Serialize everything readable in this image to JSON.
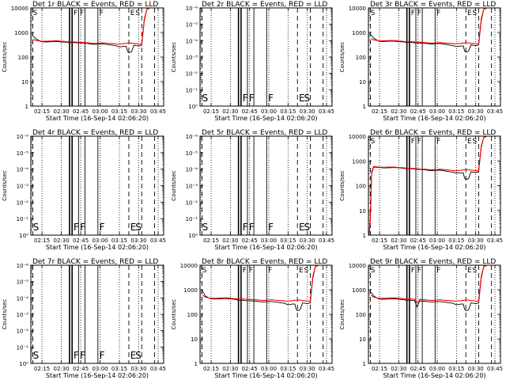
{
  "page": {
    "background": "#ffffff"
  },
  "colors": {
    "events": "#000000",
    "lld": "#ff0000"
  },
  "common": {
    "xlabel": "Start Time (16-Sep-14 02:06:20)",
    "ylabel": "Counts/sec",
    "x_ticks": [
      "02:15",
      "02:30",
      "02:45",
      "03:00",
      "03:15",
      "03:30",
      "03:45"
    ],
    "x_tick_values_min": [
      8.67,
      23.67,
      38.67,
      53.67,
      68.67,
      83.67,
      98.67
    ],
    "xlim_min": [
      0,
      103
    ],
    "log_ticks_A": [
      "1",
      "10",
      "100",
      "1000",
      "10000"
    ],
    "log_ticks_B": [
      "10⁰",
      "10⁻¹",
      "10⁻²",
      "10⁻³",
      "10⁻⁴",
      "10⁻⁵",
      "10⁻⁶"
    ],
    "dotted_lines_min": [
      8.67,
      23.67,
      38.67,
      53.67,
      68.67,
      83.67,
      98.67
    ],
    "solid_lines_min": [
      30,
      32,
      37,
      42,
      52
    ],
    "dashed_lines_min": [
      1.5,
      76,
      86,
      96
    ],
    "letters": [
      {
        "text": "F",
        "x": 32.5
      },
      {
        "text": "F",
        "x": 37.5
      },
      {
        "text": "F",
        "x": 52.5
      },
      {
        "text": "E",
        "x": 76.5
      },
      {
        "text": "S",
        "x": 80.5
      },
      {
        "text": "S",
        "x": 1.0
      }
    ]
  },
  "chart_data": [
    {
      "title": "Det 1r BLACK = Events, RED = LLD",
      "type": "line",
      "yscale": "log",
      "ylim": [
        1,
        10000
      ],
      "has_data": true,
      "tick_set": "A",
      "series": [
        {
          "name": "BLACK = Events",
          "x": [
            2,
            4,
            8,
            12,
            16,
            20,
            24,
            28,
            30,
            32,
            36,
            40,
            44,
            46,
            48,
            50,
            54,
            56,
            58,
            60,
            64,
            66,
            68,
            70,
            72,
            74,
            75,
            76,
            78,
            80,
            82,
            84,
            86,
            88,
            90,
            92
          ],
          "y": [
            700,
            550,
            420,
            410,
            420,
            430,
            410,
            400,
            380,
            390,
            380,
            370,
            360,
            340,
            330,
            330,
            340,
            340,
            330,
            320,
            300,
            290,
            260,
            260,
            270,
            270,
            170,
            150,
            160,
            300,
            290,
            280,
            300,
            3000,
            9000,
            9500
          ]
        },
        {
          "name": "RED = LLD",
          "x": [
            2,
            4,
            8,
            12,
            16,
            20,
            24,
            28,
            30,
            32,
            36,
            40,
            44,
            46,
            48,
            50,
            54,
            56,
            58,
            60,
            64,
            66,
            68,
            70,
            72,
            74,
            76,
            78,
            80,
            82,
            84,
            86,
            88,
            90,
            92
          ],
          "y": [
            520,
            470,
            440,
            440,
            450,
            460,
            440,
            420,
            410,
            420,
            400,
            390,
            380,
            370,
            360,
            360,
            370,
            380,
            370,
            360,
            350,
            340,
            330,
            340,
            350,
            360,
            370,
            370,
            350,
            350,
            330,
            340,
            3500,
            9000,
            9500
          ]
        }
      ]
    },
    {
      "title": "Det 2r BLACK = Events, RED = LLD",
      "type": "line",
      "yscale": "log",
      "has_data": false,
      "tick_set": "B",
      "series": []
    },
    {
      "title": "Det 3r BLACK = Events, RED = LLD",
      "type": "line",
      "yscale": "log",
      "ylim": [
        1,
        10000
      ],
      "has_data": true,
      "tick_set": "A",
      "series": [
        {
          "name": "BLACK = Events",
          "x": [
            2,
            4,
            8,
            12,
            16,
            20,
            24,
            28,
            30,
            32,
            36,
            40,
            44,
            46,
            48,
            50,
            54,
            56,
            58,
            60,
            64,
            66,
            68,
            70,
            72,
            74,
            75,
            76,
            78,
            80,
            82,
            84,
            86,
            88,
            90,
            92
          ],
          "y": [
            800,
            600,
            440,
            430,
            440,
            440,
            420,
            410,
            390,
            400,
            380,
            370,
            360,
            350,
            340,
            340,
            350,
            350,
            340,
            330,
            300,
            290,
            270,
            270,
            280,
            280,
            180,
            160,
            170,
            310,
            300,
            290,
            310,
            3000,
            9000,
            9500
          ]
        },
        {
          "name": "RED = LLD",
          "x": [
            2,
            4,
            8,
            12,
            16,
            20,
            24,
            28,
            30,
            32,
            36,
            40,
            44,
            46,
            48,
            50,
            54,
            56,
            58,
            60,
            64,
            66,
            68,
            70,
            72,
            74,
            76,
            78,
            80,
            82,
            84,
            86,
            88,
            90,
            92
          ],
          "y": [
            560,
            500,
            460,
            460,
            470,
            470,
            450,
            430,
            420,
            430,
            410,
            400,
            390,
            380,
            370,
            370,
            380,
            390,
            380,
            370,
            360,
            350,
            340,
            350,
            360,
            370,
            380,
            380,
            360,
            360,
            340,
            350,
            3600,
            9000,
            9500
          ]
        }
      ]
    },
    {
      "title": "Det 4r BLACK = Events, RED = LLD",
      "type": "line",
      "yscale": "log",
      "has_data": false,
      "tick_set": "B",
      "series": []
    },
    {
      "title": "Det 5r BLACK = Events, RED = LLD",
      "type": "line",
      "yscale": "log",
      "has_data": false,
      "tick_set": "B",
      "series": []
    },
    {
      "title": "Det 6r BLACK = Events, RED = LLD",
      "type": "line",
      "yscale": "log",
      "ylim": [
        1,
        10000
      ],
      "has_data": true,
      "tick_set": "A",
      "series": [
        {
          "name": "BLACK = Events",
          "x": [
            0.5,
            1.5,
            2.5,
            4,
            8,
            12,
            16,
            20,
            24,
            28,
            30,
            32,
            36,
            40,
            44,
            46,
            48,
            50,
            54,
            56,
            58,
            60,
            64,
            66,
            68,
            70,
            72,
            74,
            75,
            76,
            78,
            80,
            82,
            84,
            86,
            88,
            90,
            92
          ],
          "y": [
            1,
            5,
            300,
            560,
            540,
            520,
            530,
            540,
            520,
            500,
            480,
            490,
            470,
            450,
            440,
            420,
            410,
            410,
            420,
            420,
            410,
            390,
            360,
            350,
            320,
            330,
            330,
            330,
            200,
            180,
            190,
            360,
            350,
            340,
            360,
            3500,
            9000,
            9500
          ]
        },
        {
          "name": "RED = LLD",
          "x": [
            0.5,
            1.5,
            2.5,
            4,
            8,
            12,
            16,
            20,
            24,
            28,
            30,
            32,
            36,
            40,
            44,
            46,
            48,
            50,
            54,
            56,
            58,
            60,
            64,
            66,
            68,
            70,
            72,
            74,
            76,
            78,
            80,
            82,
            84,
            86,
            88,
            90,
            92
          ],
          "y": [
            1,
            4,
            350,
            600,
            560,
            550,
            560,
            560,
            540,
            520,
            500,
            510,
            490,
            470,
            460,
            450,
            440,
            440,
            450,
            460,
            450,
            440,
            420,
            410,
            400,
            410,
            420,
            430,
            440,
            440,
            420,
            420,
            400,
            410,
            4000,
            9000,
            9500
          ]
        }
      ]
    },
    {
      "title": "Det 7r BLACK = Events, RED = LLD",
      "type": "line",
      "yscale": "log",
      "has_data": false,
      "tick_set": "B",
      "series": []
    },
    {
      "title": "Det 8r BLACK = Events, RED = LLD",
      "type": "line",
      "yscale": "log",
      "ylim": [
        1,
        10000
      ],
      "has_data": true,
      "tick_set": "A",
      "series": [
        {
          "name": "BLACK = Events",
          "x": [
            2,
            4,
            8,
            12,
            16,
            20,
            24,
            28,
            30,
            32,
            36,
            40,
            44,
            46,
            48,
            50,
            54,
            56,
            58,
            60,
            64,
            66,
            68,
            70,
            72,
            74,
            75,
            76,
            78,
            80,
            82,
            84,
            86,
            88,
            90,
            92
          ],
          "y": [
            900,
            560,
            430,
            420,
            430,
            440,
            420,
            400,
            370,
            380,
            360,
            350,
            340,
            330,
            320,
            320,
            330,
            330,
            320,
            310,
            290,
            280,
            250,
            250,
            260,
            260,
            160,
            140,
            150,
            290,
            280,
            270,
            290,
            3000,
            9000,
            9500
          ]
        },
        {
          "name": "RED = LLD",
          "x": [
            2,
            4,
            8,
            12,
            16,
            20,
            24,
            28,
            30,
            32,
            36,
            40,
            44,
            46,
            48,
            50,
            54,
            56,
            58,
            60,
            64,
            66,
            68,
            70,
            72,
            74,
            76,
            78,
            80,
            82,
            84,
            86,
            88,
            90,
            92
          ],
          "y": [
            600,
            500,
            450,
            450,
            460,
            470,
            450,
            430,
            420,
            430,
            410,
            400,
            390,
            380,
            370,
            370,
            380,
            390,
            380,
            370,
            360,
            350,
            340,
            350,
            360,
            370,
            380,
            380,
            360,
            360,
            340,
            350,
            3600,
            9000,
            9500
          ]
        }
      ]
    },
    {
      "title": "Det 9r BLACK = Events, RED = LLD",
      "type": "line",
      "yscale": "log",
      "ylim": [
        1,
        10000
      ],
      "has_data": true,
      "tick_set": "A",
      "series": [
        {
          "name": "BLACK = Events",
          "x": [
            2,
            4,
            8,
            12,
            16,
            20,
            24,
            28,
            30,
            32,
            36,
            38,
            40,
            44,
            46,
            48,
            50,
            54,
            56,
            58,
            60,
            64,
            66,
            68,
            70,
            72,
            74,
            75,
            76,
            78,
            80,
            82,
            84,
            86,
            88,
            90,
            92
          ],
          "y": [
            800,
            560,
            420,
            410,
            420,
            430,
            410,
            390,
            370,
            380,
            360,
            200,
            350,
            340,
            330,
            320,
            320,
            330,
            330,
            320,
            310,
            290,
            280,
            250,
            250,
            260,
            260,
            160,
            140,
            150,
            290,
            280,
            270,
            290,
            3000,
            9000,
            9500
          ]
        },
        {
          "name": "RED = LLD",
          "x": [
            2,
            4,
            8,
            12,
            16,
            20,
            24,
            28,
            30,
            32,
            36,
            38,
            40,
            44,
            46,
            48,
            50,
            54,
            56,
            58,
            60,
            64,
            66,
            68,
            70,
            72,
            74,
            76,
            78,
            80,
            82,
            84,
            86,
            88,
            90,
            92
          ],
          "y": [
            600,
            500,
            450,
            450,
            460,
            470,
            450,
            430,
            420,
            430,
            410,
            300,
            400,
            390,
            380,
            370,
            370,
            380,
            390,
            380,
            370,
            360,
            350,
            340,
            350,
            360,
            370,
            380,
            380,
            360,
            360,
            340,
            350,
            3600,
            9000,
            9500
          ]
        }
      ]
    }
  ]
}
